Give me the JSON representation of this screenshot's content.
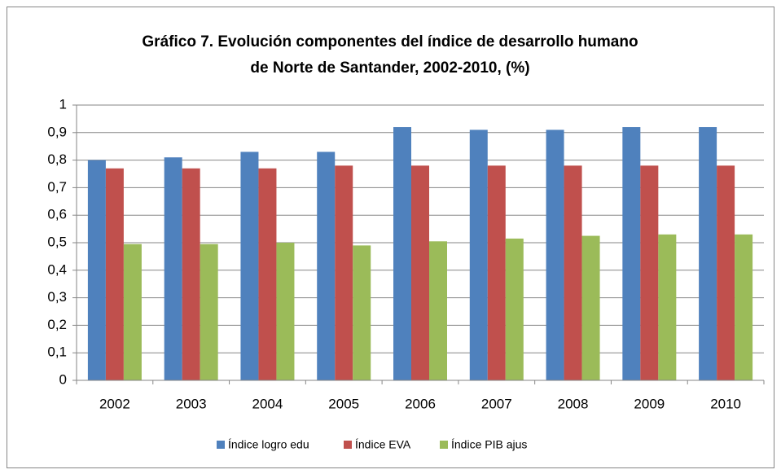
{
  "chart_data": {
    "type": "bar",
    "title": [
      "Gráfico 7. Evolución componentes del índice de desarrollo humano",
      "de Norte de Santander, 2002-2010, (%)"
    ],
    "categories": [
      "2002",
      "2003",
      "2004",
      "2005",
      "2006",
      "2007",
      "2008",
      "2009",
      "2010"
    ],
    "series": [
      {
        "name": "Índice logro edu",
        "color": "#4f81bd",
        "values": [
          0.8,
          0.81,
          0.83,
          0.83,
          0.92,
          0.91,
          0.91,
          0.92,
          0.92
        ]
      },
      {
        "name": "Índice EVA",
        "color": "#c0504d",
        "values": [
          0.77,
          0.77,
          0.77,
          0.78,
          0.78,
          0.78,
          0.78,
          0.78,
          0.78
        ]
      },
      {
        "name": "Índice PIB ajus",
        "color": "#9bbb59",
        "values": [
          0.495,
          0.495,
          0.5,
          0.49,
          0.505,
          0.515,
          0.525,
          0.53,
          0.53
        ]
      }
    ],
    "ylim": [
      0,
      1
    ],
    "yticks": [
      0,
      {
        "value": 0.1,
        "label": "0,1"
      },
      {
        "value": 0.2,
        "label": "0,2"
      },
      {
        "value": 0.3,
        "label": "0,3"
      },
      {
        "value": 0.4,
        "label": "0,4"
      },
      {
        "value": 0.5,
        "label": "0,5"
      },
      {
        "value": 0.6,
        "label": "0,6"
      },
      {
        "value": 0.7,
        "label": "0,7"
      },
      {
        "value": 0.8,
        "label": "0,8"
      },
      {
        "value": 0.9,
        "label": "0,9"
      },
      1
    ],
    "grid": true,
    "legend": "bottom"
  }
}
